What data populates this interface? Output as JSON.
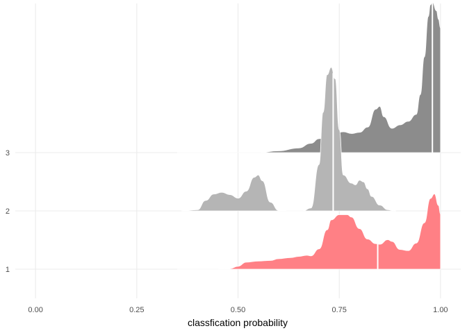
{
  "chart_data": {
    "type": "area",
    "subtype": "ridgeline-density",
    "title": "",
    "xlabel": "classfication probability",
    "ylabel": "",
    "xlim": [
      -0.05,
      1.05
    ],
    "x_ticks": [
      0,
      0.25,
      0.5,
      0.75,
      1.0
    ],
    "x_tick_labels": [
      "0.00",
      "0.25",
      "0.50",
      "0.75",
      "1.00"
    ],
    "y_categories": [
      "1",
      "2",
      "3"
    ],
    "grid": true,
    "legend": "none",
    "colors": {
      "ridge_1": "#ff8085",
      "ridge_2": "#b5b5b5",
      "ridge_3": "#8c8c8c",
      "grid": "#ebebeb",
      "quantile_line": "#ffffff"
    },
    "series": [
      {
        "category": "1",
        "median": 0.845,
        "x": [
          0.35,
          0.4,
          0.45,
          0.48,
          0.5,
          0.52,
          0.55,
          0.58,
          0.6,
          0.63,
          0.65,
          0.67,
          0.68,
          0.7,
          0.72,
          0.73,
          0.75,
          0.77,
          0.78,
          0.8,
          0.82,
          0.84,
          0.85,
          0.87,
          0.88,
          0.9,
          0.92,
          0.94,
          0.96,
          0.975,
          0.985,
          0.995,
          1.0
        ],
        "y": [
          0.0,
          0.0,
          0.0,
          0.01,
          0.05,
          0.12,
          0.14,
          0.15,
          0.18,
          0.2,
          0.22,
          0.24,
          0.23,
          0.35,
          0.68,
          0.85,
          0.94,
          0.94,
          0.9,
          0.7,
          0.52,
          0.44,
          0.43,
          0.51,
          0.48,
          0.34,
          0.32,
          0.45,
          0.8,
          1.22,
          1.3,
          1.1,
          0.95
        ]
      },
      {
        "category": "2",
        "median": 0.735,
        "x": [
          0.36,
          0.4,
          0.42,
          0.44,
          0.46,
          0.48,
          0.5,
          0.52,
          0.54,
          0.55,
          0.56,
          0.58,
          0.6,
          0.62,
          0.64,
          0.66,
          0.68,
          0.7,
          0.71,
          0.72,
          0.73,
          0.74,
          0.75,
          0.76,
          0.78,
          0.79,
          0.8,
          0.81,
          0.82,
          0.83,
          0.85,
          0.87,
          0.88,
          0.89
        ],
        "y": [
          0.0,
          0.02,
          0.18,
          0.29,
          0.32,
          0.28,
          0.22,
          0.34,
          0.58,
          0.62,
          0.52,
          0.15,
          0.01,
          0.0,
          0.0,
          0.0,
          0.05,
          0.8,
          1.7,
          2.35,
          2.48,
          2.28,
          1.4,
          0.62,
          0.48,
          0.45,
          0.53,
          0.5,
          0.38,
          0.25,
          0.1,
          0.02,
          0.01,
          0.0
        ]
      },
      {
        "category": "3",
        "median": 0.98,
        "x": [
          0.35,
          0.55,
          0.6,
          0.65,
          0.68,
          0.7,
          0.72,
          0.74,
          0.76,
          0.78,
          0.8,
          0.82,
          0.84,
          0.85,
          0.86,
          0.88,
          0.9,
          0.92,
          0.94,
          0.95,
          0.96,
          0.97,
          0.975,
          0.98,
          0.99,
          0.995,
          1.0
        ],
        "y": [
          0.0,
          0.0,
          0.03,
          0.08,
          0.16,
          0.24,
          0.3,
          0.33,
          0.36,
          0.33,
          0.35,
          0.44,
          0.75,
          0.8,
          0.62,
          0.42,
          0.48,
          0.54,
          0.66,
          1.0,
          1.65,
          2.35,
          2.55,
          2.6,
          2.45,
          2.3,
          2.15
        ]
      }
    ]
  }
}
